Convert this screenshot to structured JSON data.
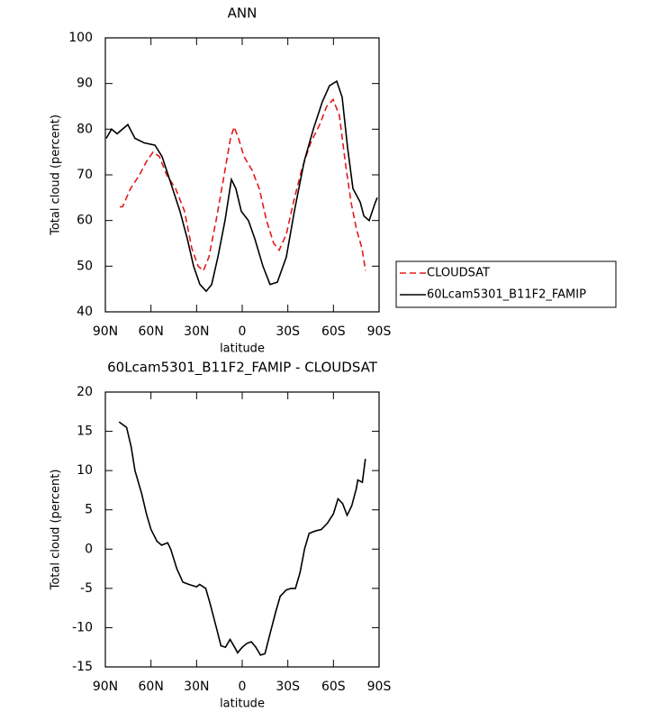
{
  "chart_data": [
    {
      "type": "line",
      "title": "ANN",
      "xlabel": "latitude",
      "ylabel": "Total cloud (percent)",
      "xlim": [
        90,
        -90
      ],
      "xticks": [
        {
          "value": 90,
          "label": "90N"
        },
        {
          "value": 60,
          "label": "60N"
        },
        {
          "value": 30,
          "label": "30N"
        },
        0,
        {
          "value": -30,
          "label": "30S"
        },
        {
          "value": -60,
          "label": "60S"
        },
        {
          "value": -90,
          "label": "90S"
        }
      ],
      "ylim": [
        40,
        100
      ],
      "yticks": [
        40,
        50,
        60,
        70,
        80,
        90,
        100
      ],
      "legend": "right",
      "series": [
        {
          "name": "CLOUDSAT",
          "color": "#e41a1c",
          "dashed": true,
          "x": [
            80.5,
            78.7,
            73.4,
            67.5,
            62.8,
            58.6,
            54.5,
            49.7,
            43.8,
            37.9,
            33.2,
            29,
            25.5,
            21.9,
            17.2,
            12.4,
            7.7,
            5.3,
            2.4,
            -1.2,
            -6.5,
            -11.2,
            -16,
            -20.7,
            -24.3,
            -29,
            -33.7,
            -39,
            -45,
            -50.9,
            -55.6,
            -59.8,
            -63.9,
            -68.1,
            -71.6,
            -75.2,
            -78.7,
            -81.1
          ],
          "values": [
            63,
            63,
            67,
            70,
            73,
            75,
            74,
            70,
            67,
            62,
            54,
            50,
            49,
            52,
            60,
            69,
            78,
            80.5,
            78,
            74,
            71,
            67,
            60,
            55,
            53.5,
            57,
            64,
            71,
            77,
            81,
            85,
            86.5,
            83,
            72,
            64,
            58,
            54,
            49
          ]
        },
        {
          "name": "60Lcam5301_B11F2_FAMIP",
          "color": "#000000",
          "dashed": false,
          "x": [
            89.4,
            85.9,
            82.3,
            75.2,
            70.5,
            64.5,
            57.4,
            52.7,
            46.8,
            40.9,
            36.1,
            32,
            27.8,
            23.7,
            20.1,
            16,
            11.3,
            7.1,
            4.2,
            0.6,
            -4.1,
            -8.3,
            -13.6,
            -18.3,
            -23.1,
            -29,
            -34.3,
            -40.8,
            -46.8,
            -52.7,
            -57.4,
            -62.2,
            -65.7,
            -69.3,
            -72.8,
            -77.6,
            -80,
            -83.5,
            -87.6,
            -88.8
          ],
          "values": [
            78,
            80,
            79,
            81,
            78,
            77,
            76.5,
            74,
            68,
            62,
            56,
            50,
            46,
            44.5,
            46,
            52,
            60,
            69,
            67,
            62,
            60,
            56,
            50,
            46,
            46.5,
            52,
            62,
            73,
            80,
            86,
            89.5,
            90.5,
            87,
            76,
            67,
            64,
            61,
            60,
            64,
            65
          ]
        }
      ]
    },
    {
      "type": "line",
      "title": "60Lcam5301_B11F2_FAMIP - CLOUDSAT",
      "xlabel": "latitude",
      "ylabel": "Total cloud (percent)",
      "xlim": [
        90,
        -90
      ],
      "xticks": [
        {
          "value": 90,
          "label": "90N"
        },
        {
          "value": 60,
          "label": "60N"
        },
        {
          "value": 30,
          "label": "30N"
        },
        0,
        {
          "value": -30,
          "label": "30S"
        },
        {
          "value": -60,
          "label": "60S"
        },
        {
          "value": -90,
          "label": "90S"
        }
      ],
      "ylim": [
        -15,
        20
      ],
      "yticks": [
        -15,
        -10,
        -5,
        0,
        5,
        10,
        15,
        20
      ],
      "series": [
        {
          "color": "#000000",
          "dashed": false,
          "x": [
            81,
            76,
            73,
            70.5,
            66,
            63,
            60,
            56,
            53,
            49,
            47,
            43,
            39,
            35,
            30,
            28,
            24,
            21,
            17,
            14,
            11,
            8,
            5,
            3,
            0,
            -3,
            -6,
            -9,
            -12,
            -15,
            -18,
            -22,
            -25,
            -29,
            -32,
            -35,
            -38,
            -41,
            -44,
            -48,
            -52,
            -56,
            -60,
            -63,
            -66,
            -69,
            -72,
            -75,
            -76,
            -79,
            -81
          ],
          "values": [
            16.2,
            15.5,
            13,
            10,
            7,
            4.5,
            2.5,
            1,
            0.5,
            0.8,
            0,
            -2.5,
            -4.2,
            -4.5,
            -4.8,
            -4.5,
            -5,
            -7,
            -10,
            -12.3,
            -12.5,
            -11.5,
            -12.5,
            -13.2,
            -12.5,
            -12,
            -11.8,
            -12.5,
            -13.5,
            -13.3,
            -11,
            -8,
            -6,
            -5.2,
            -5,
            -5,
            -3,
            0,
            2,
            2.3,
            2.5,
            3.3,
            4.5,
            6.4,
            5.8,
            4.3,
            5.5,
            7.7,
            8.8,
            8.5,
            11.5
          ]
        }
      ]
    }
  ]
}
